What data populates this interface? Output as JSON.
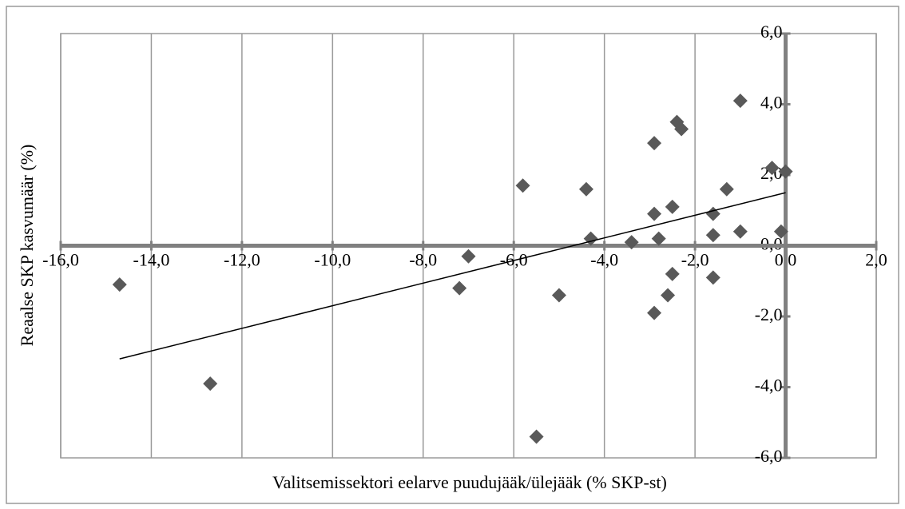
{
  "chart_data": {
    "type": "scatter",
    "x_label": "Valitsemissektori eelarve puudujääk/ülejääk (% SKP-st)",
    "y_label": "Reaalse SKP kasvumäär (%)",
    "xlim": [
      -16,
      2
    ],
    "ylim": [
      -6,
      6
    ],
    "xticks": [
      {
        "value": -16,
        "label": "-16,0"
      },
      {
        "value": -14,
        "label": "-14,0"
      },
      {
        "value": -12,
        "label": "-12,0"
      },
      {
        "value": -10,
        "label": "-10,0"
      },
      {
        "value": -8,
        "label": "-8,0"
      },
      {
        "value": -6,
        "label": "-6,0"
      },
      {
        "value": -4,
        "label": "-4,0"
      },
      {
        "value": -2,
        "label": "-2,0"
      },
      {
        "value": 0,
        "label": "0,0"
      },
      {
        "value": 2,
        "label": "2,0"
      }
    ],
    "yticks": [
      {
        "value": -6,
        "label": "-6,0"
      },
      {
        "value": -4,
        "label": "-4,0"
      },
      {
        "value": -2,
        "label": "-2,0"
      },
      {
        "value": 0,
        "label": "0,0"
      },
      {
        "value": 2,
        "label": "2,0"
      },
      {
        "value": 4,
        "label": "4,0"
      },
      {
        "value": 6,
        "label": "6,0"
      }
    ],
    "grid": true,
    "series": [
      {
        "color": "#595959",
        "x": [
          -14.7,
          -12.7,
          -7.0,
          -7.2,
          -5.8,
          -5.5,
          -5.0,
          -4.4,
          -4.3,
          -3.4,
          -2.9,
          -2.9,
          -2.9,
          -2.8,
          -2.6,
          -2.5,
          -2.5,
          -2.4,
          -2.3,
          -1.6,
          -1.6,
          -1.6,
          -1.3,
          -1.0,
          -1.0,
          -0.3,
          0.0,
          -0.1
        ],
        "values": [
          -1.1,
          -3.9,
          -0.3,
          -1.2,
          1.7,
          -5.4,
          -1.4,
          1.6,
          0.2,
          0.1,
          2.9,
          0.9,
          -1.9,
          0.2,
          -1.4,
          1.1,
          -0.8,
          3.5,
          3.3,
          0.9,
          0.3,
          -0.9,
          1.6,
          4.1,
          0.4,
          2.2,
          2.1,
          0.4
        ]
      }
    ],
    "trendline": {
      "color": "#000000",
      "x": [
        -14.7,
        0.0
      ],
      "y": [
        -3.2,
        1.5
      ]
    }
  }
}
